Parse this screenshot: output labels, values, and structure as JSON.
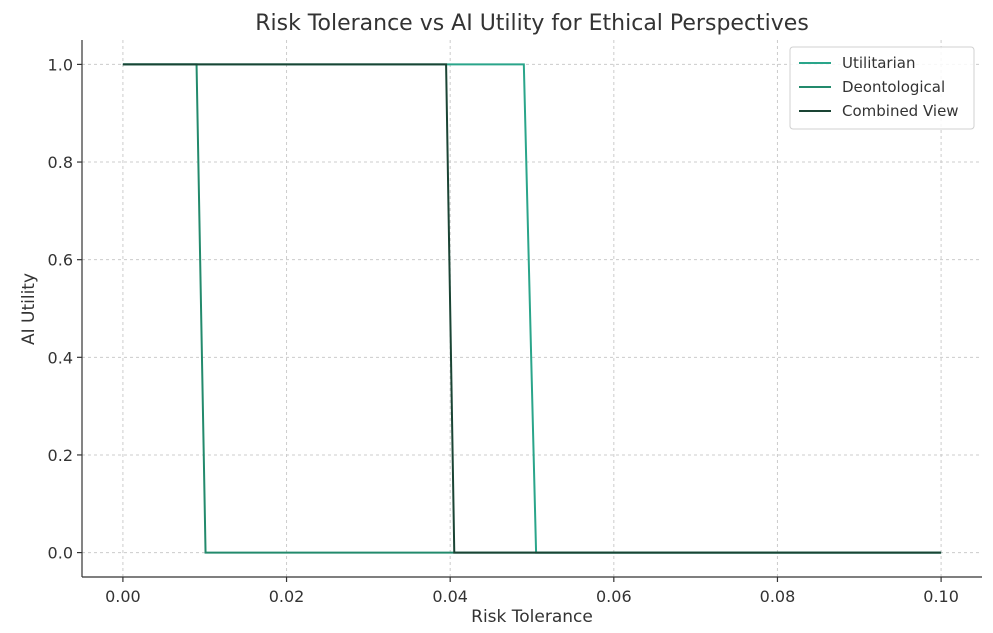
{
  "chart_data": {
    "type": "line",
    "title": "Risk Tolerance vs AI Utility for Ethical Perspectives",
    "xlabel": "Risk Tolerance",
    "ylabel": "AI Utility",
    "xlim": [
      -0.005,
      0.105
    ],
    "ylim": [
      -0.05,
      1.05
    ],
    "xticks": [
      0.0,
      0.02,
      0.04,
      0.06,
      0.08,
      0.1
    ],
    "xtick_labels": [
      "0.00",
      "0.02",
      "0.04",
      "0.06",
      "0.08",
      "0.10"
    ],
    "yticks": [
      0.0,
      0.2,
      0.4,
      0.6,
      0.8,
      1.0
    ],
    "ytick_labels": [
      "0.0",
      "0.2",
      "0.4",
      "0.6",
      "0.8",
      "1.0"
    ],
    "grid": true,
    "legend_position": "top-right",
    "series": [
      {
        "name": "Utilitarian",
        "color": "#2aa58a",
        "x": [
          0.0,
          0.049,
          0.0505,
          0.1
        ],
        "y": [
          1,
          1,
          0,
          0
        ]
      },
      {
        "name": "Deontological",
        "color": "#238a6c",
        "x": [
          0.0,
          0.009,
          0.0101,
          0.1
        ],
        "y": [
          1,
          1,
          0,
          0
        ]
      },
      {
        "name": "Combined View",
        "color": "#1a4434",
        "x": [
          0.0,
          0.0395,
          0.0405,
          0.1
        ],
        "y": [
          1,
          1,
          0,
          0
        ]
      }
    ]
  }
}
